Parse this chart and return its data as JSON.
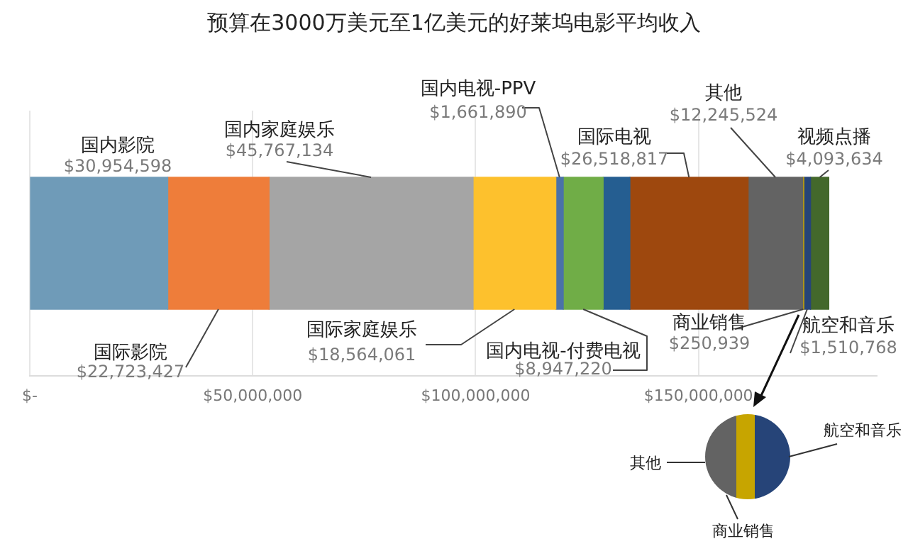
{
  "chart_data": {
    "type": "bar",
    "orientation": "horizontal",
    "stacked": true,
    "title": "预算在3000万美元至1亿美元的好莱坞电影平均收入",
    "categories": [
      null
    ],
    "series": [
      {
        "name": "国内影院",
        "color": "#6f9bb8",
        "values": [
          30954598
        ],
        "value_labels": [
          "$30,954,598"
        ]
      },
      {
        "name": "国际影院",
        "color": "#ee7d3a",
        "values": [
          22723427
        ],
        "value_labels": [
          "$22,723,427"
        ]
      },
      {
        "name": "国内家庭娱乐",
        "color": "#a5a5a5",
        "values": [
          45767134
        ],
        "value_labels": [
          "$45,767,134"
        ]
      },
      {
        "name": "国际家庭娱乐",
        "color": "#fdc12d",
        "values": [
          18564061
        ],
        "value_labels": [
          "$18,564,061"
        ]
      },
      {
        "name": "国内电视-PPV",
        "color": "#4a72a8",
        "values": [
          1661890
        ],
        "value_labels": [
          "$1,661,890"
        ]
      },
      {
        "name": "国内电视-付费电视",
        "color": "#70ad47",
        "values": [
          8947220
        ],
        "value_labels": [
          "$8,947,220"
        ]
      },
      {
        "color": "#255e91",
        "values": [
          6000000
        ]
      },
      {
        "name": "国际电视",
        "color": "#9e480e",
        "values": [
          26518817
        ],
        "value_labels": [
          "$26,518,817"
        ]
      },
      {
        "name": "其他",
        "color": "#636363",
        "values": [
          12245524
        ],
        "value_labels": [
          "$12,245,524"
        ]
      },
      {
        "name": "商业销售",
        "color": "#c7a500",
        "values": [
          250939
        ],
        "value_labels": [
          "$250,939"
        ]
      },
      {
        "name": "航空和音乐",
        "color": "#264478",
        "values": [
          1510768
        ],
        "value_labels": [
          "$1,510,768"
        ]
      },
      {
        "name": "视频点播",
        "color": "#43682b",
        "values": [
          4093634
        ],
        "value_labels": [
          "$4,093,634"
        ]
      }
    ],
    "xlim": [
      0,
      190000000
    ],
    "xticks": [
      {
        "value": 0,
        "label": "$-"
      },
      {
        "value": 50000000,
        "label": "$50,000,000"
      },
      {
        "value": 100000000,
        "label": "$100,000,000"
      },
      {
        "value": 150000000,
        "label": "$150,000,000"
      }
    ],
    "grid": "x",
    "legend": false,
    "annotations": [
      "其他",
      "航空和音乐",
      "商业销售"
    ]
  }
}
